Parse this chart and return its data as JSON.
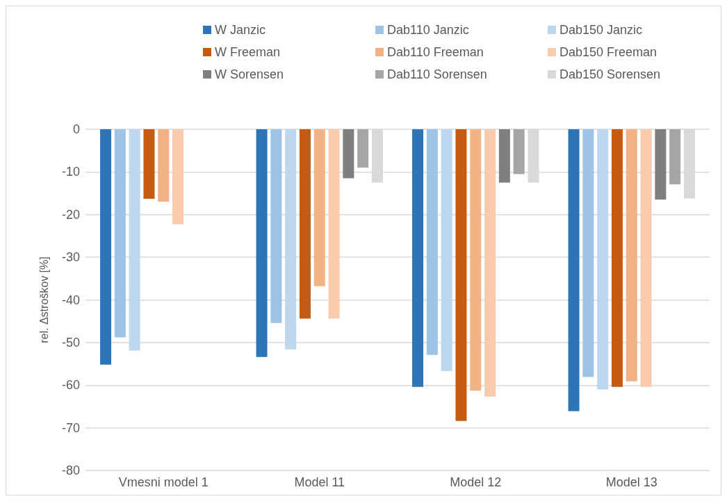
{
  "chart_data": {
    "type": "bar",
    "ylabel": "rel. Δstroškov [%]",
    "categories": [
      "Vmesni model 1",
      "Model 11",
      "Model 12",
      "Model 13"
    ],
    "ylim": [
      -80,
      0
    ],
    "yticks": [
      -80,
      -70,
      -60,
      -50,
      -40,
      -30,
      -20,
      -10,
      0
    ],
    "grid": "y",
    "legend": "top",
    "series": [
      {
        "name": "W Janzic",
        "color": "#2e75b6",
        "values": [
          -55.2,
          -53.4,
          -60.4,
          -66.1
        ]
      },
      {
        "name": "Dab110 Janzic",
        "color": "#9dc3e6",
        "values": [
          -48.8,
          -45.4,
          -52.9,
          -58.1
        ]
      },
      {
        "name": "Dab150 Janzic",
        "color": "#bdd7ee",
        "values": [
          -51.9,
          -51.6,
          -56.7,
          -61.0
        ]
      },
      {
        "name": "W Freeman",
        "color": "#c55a11",
        "values": [
          -16.3,
          -44.4,
          -68.4,
          -60.4
        ]
      },
      {
        "name": "Dab110 Freeman",
        "color": "#f4b183",
        "values": [
          -17.0,
          -36.8,
          -61.3,
          -59.1
        ]
      },
      {
        "name": "Dab150 Freeman",
        "color": "#f8cbad",
        "values": [
          -22.3,
          -44.4,
          -62.7,
          -60.4
        ]
      },
      {
        "name": "W Sorensen",
        "color": "#7f7f7f",
        "values": [
          null,
          -11.5,
          -12.5,
          -16.5
        ]
      },
      {
        "name": "Dab110 Sorensen",
        "color": "#a5a5a5",
        "values": [
          null,
          -9.0,
          -10.5,
          -12.9
        ]
      },
      {
        "name": "Dab150 Sorensen",
        "color": "#d9d9d9",
        "values": [
          null,
          -12.5,
          -12.5,
          -16.2
        ]
      }
    ]
  }
}
